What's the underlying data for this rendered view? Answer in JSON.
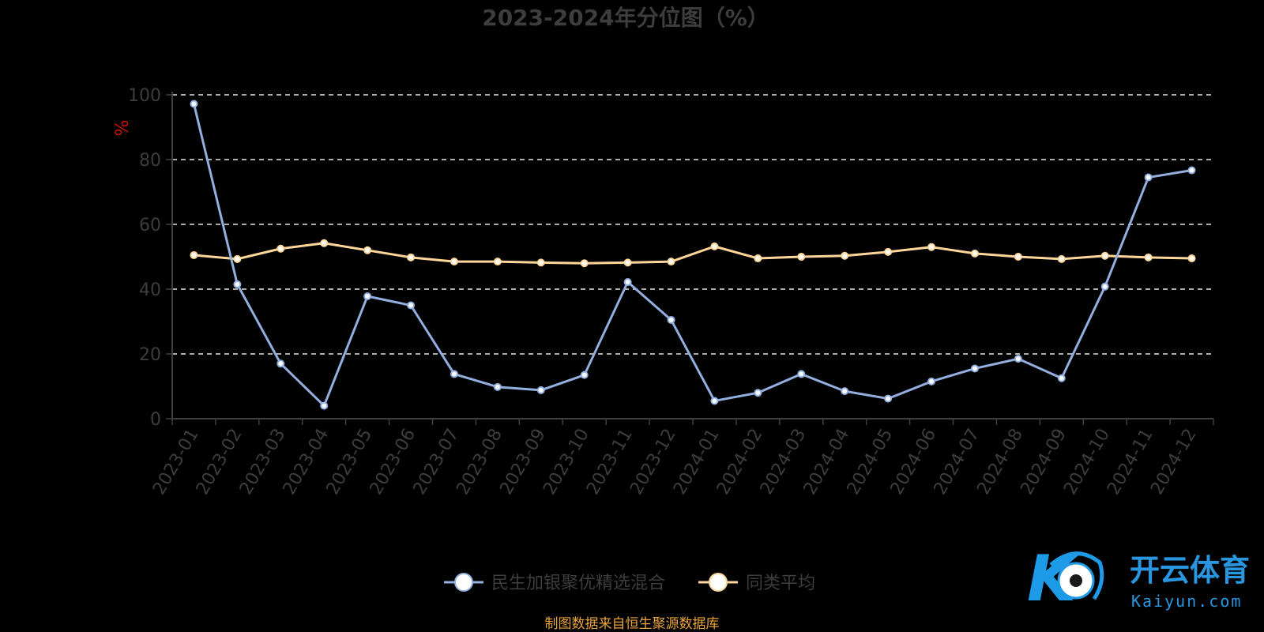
{
  "colors": {
    "background": "#000000",
    "text": "#3d3d3d",
    "axis": "#404040",
    "grid": "#e6e6e6",
    "series_fund": "#92afe0",
    "series_avg": "#ffd699",
    "marker_fill": "#ffffff",
    "ylabel": "#cc1100",
    "source": "#e8a33d",
    "logo_k": "#1e9be8",
    "logo_text": "#2a96e0"
  },
  "chart_data": {
    "type": "line",
    "title": "2023-2024年分位图（%）",
    "xlabel": "",
    "ylabel": "%",
    "ylim": [
      0,
      100
    ],
    "yticks": [
      0,
      20,
      40,
      60,
      80,
      100
    ],
    "grid": true,
    "legend_position": "bottom-center",
    "categories": [
      "2023-01",
      "2023-02",
      "2023-03",
      "2023-04",
      "2023-05",
      "2023-06",
      "2023-07",
      "2023-08",
      "2023-09",
      "2023-10",
      "2023-11",
      "2023-12",
      "2024-01",
      "2024-02",
      "2024-03",
      "2024-04",
      "2024-05",
      "2024-06",
      "2024-07",
      "2024-08",
      "2024-09",
      "2024-10",
      "2024-11",
      "2024-12"
    ],
    "series": [
      {
        "name": "民生加银聚优精选混合",
        "color_key": "series_fund",
        "values": [
          97.2,
          41.5,
          17.0,
          4.0,
          37.8,
          35.0,
          13.8,
          9.8,
          8.8,
          13.5,
          42.2,
          30.5,
          5.5,
          8.0,
          13.8,
          8.5,
          6.2,
          11.5,
          15.5,
          18.5,
          12.5,
          40.8,
          74.5,
          76.7
        ]
      },
      {
        "name": "同类平均",
        "color_key": "series_avg",
        "values": [
          50.5,
          49.3,
          52.5,
          54.2,
          52.0,
          49.8,
          48.5,
          48.5,
          48.2,
          48.0,
          48.2,
          48.5,
          53.2,
          49.5,
          50.0,
          50.3,
          51.5,
          53.0,
          51.0,
          50.0,
          49.3,
          50.3,
          49.8,
          49.5
        ]
      }
    ]
  },
  "footer": {
    "source": "制图数据来自恒生聚源数据库"
  },
  "logo": {
    "name": "开云体育",
    "domain": "Kaiyun.com"
  }
}
